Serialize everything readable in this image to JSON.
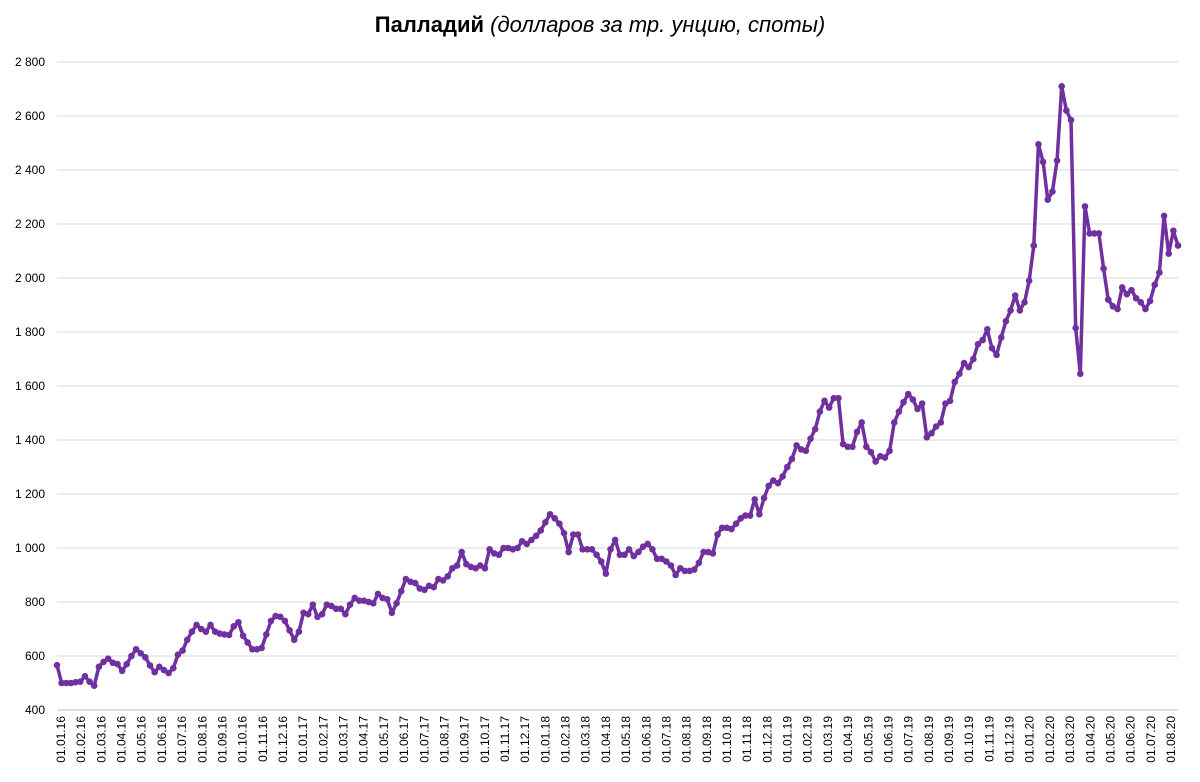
{
  "chart_data": {
    "type": "line",
    "title": "Палладий",
    "subtitle": "(долларов за тр. унцию, споты)",
    "xlabel": "",
    "ylabel": "",
    "ylim": [
      400,
      2800
    ],
    "y_ticks": [
      400,
      600,
      800,
      1000,
      1200,
      1400,
      1600,
      1800,
      2000,
      2200,
      2400,
      2600,
      2800
    ],
    "y_tick_labels": [
      "400",
      "600",
      "800",
      "1 000",
      "1 200",
      "1 400",
      "1 600",
      "1 800",
      "2 000",
      "2 200",
      "2 400",
      "2 600",
      "2 800"
    ],
    "x_tick_labels": [
      "01.01.16",
      "01.02.16",
      "01.03.16",
      "01.04.16",
      "01.05.16",
      "01.06.16",
      "01.07.16",
      "01.08.16",
      "01.09.16",
      "01.10.16",
      "01.11.16",
      "01.12.16",
      "01.01.17",
      "01.02.17",
      "01.03.17",
      "01.04.17",
      "01.05.17",
      "01.06.17",
      "01.07.17",
      "01.08.17",
      "01.09.17",
      "01.10.17",
      "01.11.17",
      "01.12.17",
      "01.01.18",
      "01.02.18",
      "01.03.18",
      "01.04.18",
      "01.05.18",
      "01.06.18",
      "01.07.18",
      "01.08.18",
      "01.09.18",
      "01.10.18",
      "01.11.18",
      "01.12.18",
      "01.01.19",
      "01.02.19",
      "01.03.19",
      "01.04.19",
      "01.05.19",
      "01.06.19",
      "01.07.19",
      "01.08.19",
      "01.09.19",
      "01.10.19",
      "01.11.19",
      "01.12.19",
      "01.01.20",
      "01.02.20",
      "01.03.20",
      "01.04.20",
      "01.05.20",
      "01.06.20",
      "01.07.20",
      "01.08.20"
    ],
    "grid": true,
    "legend": "none",
    "line_color": "#7030A0",
    "series": [
      {
        "values": [
          566,
          500,
          500,
          500,
          503,
          505,
          525,
          505,
          490,
          560,
          578,
          590,
          575,
          570,
          545,
          570,
          600,
          625,
          610,
          595,
          565,
          540,
          560,
          548,
          537,
          555,
          605,
          620,
          660,
          690,
          715,
          700,
          690,
          715,
          690,
          683,
          680,
          678,
          710,
          725,
          675,
          650,
          625,
          625,
          630,
          680,
          730,
          748,
          745,
          730,
          695,
          660,
          690,
          760,
          755,
          790,
          745,
          755,
          790,
          785,
          775,
          775,
          755,
          790,
          815,
          805,
          805,
          800,
          795,
          830,
          815,
          810,
          760,
          795,
          840,
          885,
          875,
          870,
          850,
          845,
          860,
          855,
          885,
          880,
          895,
          925,
          935,
          985,
          940,
          930,
          925,
          935,
          925,
          995,
          980,
          975,
          1000,
          1000,
          995,
          1000,
          1025,
          1015,
          1030,
          1045,
          1065,
          1095,
          1125,
          1110,
          1090,
          1055,
          985,
          1050,
          1050,
          995,
          995,
          995,
          975,
          950,
          905,
          995,
          1030,
          975,
          975,
          995,
          970,
          985,
          1005,
          1015,
          995,
          960,
          960,
          950,
          935,
          900,
          925,
          915,
          915,
          920,
          945,
          985,
          985,
          980,
          1050,
          1075,
          1075,
          1070,
          1090,
          1110,
          1120,
          1120,
          1180,
          1125,
          1185,
          1230,
          1250,
          1240,
          1265,
          1300,
          1330,
          1380,
          1365,
          1360,
          1405,
          1440,
          1505,
          1545,
          1520,
          1555,
          1555,
          1385,
          1375,
          1375,
          1430,
          1465,
          1375,
          1355,
          1320,
          1340,
          1335,
          1360,
          1465,
          1505,
          1540,
          1570,
          1550,
          1515,
          1535,
          1410,
          1425,
          1450,
          1465,
          1535,
          1545,
          1615,
          1645,
          1685,
          1670,
          1700,
          1755,
          1770,
          1810,
          1740,
          1715,
          1780,
          1840,
          1880,
          1935,
          1880,
          1910,
          1990,
          2120,
          2495,
          2430,
          2290,
          2320,
          2435,
          2710,
          2620,
          2585,
          1815,
          1645,
          2265,
          2165,
          2165,
          2165,
          2035,
          1920,
          1895,
          1885,
          1965,
          1940,
          1955,
          1925,
          1910,
          1885,
          1915,
          1975,
          2020,
          2230,
          2090,
          2175,
          2120
        ]
      }
    ]
  }
}
